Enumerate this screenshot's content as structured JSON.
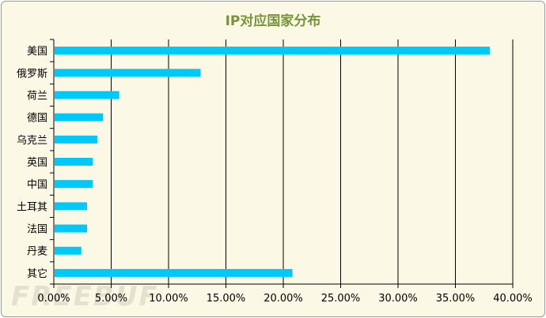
{
  "chart_data": {
    "type": "bar",
    "orientation": "horizontal",
    "title": "IP对应国家分布",
    "categories": [
      "美国",
      "俄罗斯",
      "荷兰",
      "德国",
      "乌克兰",
      "英国",
      "中国",
      "土耳其",
      "法国",
      "丹麦",
      "其它"
    ],
    "values": [
      38.0,
      12.8,
      5.7,
      4.3,
      3.8,
      3.4,
      3.4,
      2.9,
      2.9,
      2.4,
      20.8
    ],
    "xlim": [
      0,
      40
    ],
    "xticks": [
      0,
      5,
      10,
      15,
      20,
      25,
      30,
      35,
      40
    ],
    "xtick_labels": [
      "0.00%",
      "5.00%",
      "10.00%",
      "15.00%",
      "20.00%",
      "25.00%",
      "30.00%",
      "35.00%",
      "40.00%"
    ],
    "xlabel": "",
    "ylabel": "",
    "grid": "vertical",
    "legend": "none",
    "bar_color": "#00c8f8",
    "title_color": "#77933c"
  },
  "watermark": "FREEBUF"
}
